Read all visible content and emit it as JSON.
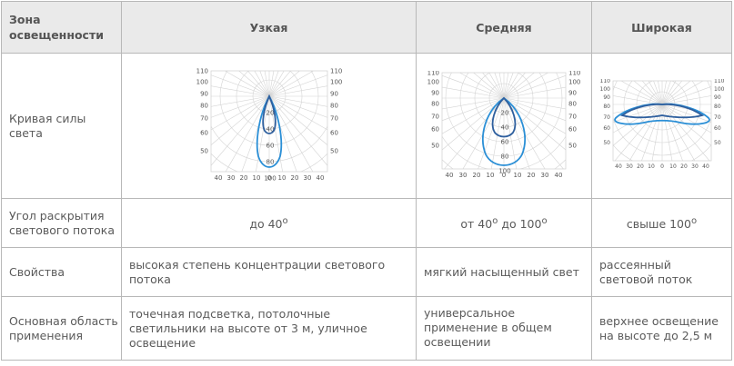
{
  "header": {
    "zone": "Зона освещенности",
    "narrow": "Узкая",
    "medium": "Средняя",
    "wide": "Широкая"
  },
  "rows": {
    "curve": {
      "label": "Кривая силы света"
    },
    "angle": {
      "label": "Угол раскрытия светового потока",
      "narrow_pre": "до 40",
      "narrow_sup": "o",
      "medium_pre": "от 40",
      "medium_sup1": "o",
      "medium_mid": " до 100",
      "medium_sup2": "o",
      "wide_pre": "свыше 100",
      "wide_sup": "o"
    },
    "props": {
      "label": "Свойства",
      "narrow": "высокая степень концентрации светового потока",
      "medium": "мягкий насыщенный свет",
      "wide": "рассеянный световой поток"
    },
    "use": {
      "label": "Основная область применения",
      "narrow": "точечная подсветка, потолочные светильники на высоте от 3 м, уличное освещение",
      "medium": "универсальное применение в общем освещении",
      "wide": "верхнее освещение на высоте до 2,5 м"
    }
  },
  "diagrams": {
    "angle_labels_left": [
      "110",
      "100",
      "90",
      "80",
      "70",
      "60",
      "50"
    ],
    "angle_labels_right": [
      "110",
      "100",
      "90",
      "80",
      "70",
      "60",
      "50"
    ],
    "bottom_labels": [
      "40",
      "30",
      "20",
      "10",
      "0",
      "10",
      "20",
      "30",
      "40"
    ],
    "center_labels": [
      "20",
      "40",
      "60",
      "80",
      "100"
    ],
    "curve_color_dark": "#2e5f9e",
    "curve_color_light": "#2b8fd6"
  }
}
